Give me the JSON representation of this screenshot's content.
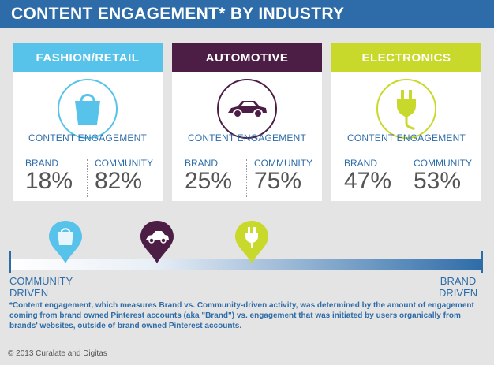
{
  "header": {
    "title": "CONTENT ENGAGEMENT* BY INDUSTRY"
  },
  "colors": {
    "fashion": "#58c3ea",
    "automotive": "#4c1d45",
    "electronics": "#c8d92b",
    "blue": "#2d6ca8"
  },
  "panels": [
    {
      "title": "FASHION/RETAIL",
      "icon": "shopping-bag-icon",
      "engagement_label": "CONTENT ENGAGEMENT",
      "brand_label": "BRAND",
      "brand_value": "18%",
      "community_label": "COMMUNITY",
      "community_value": "82%"
    },
    {
      "title": "AUTOMOTIVE",
      "icon": "car-icon",
      "engagement_label": "CONTENT ENGAGEMENT",
      "brand_label": "BRAND",
      "brand_value": "25%",
      "community_label": "COMMUNITY",
      "community_value": "75%"
    },
    {
      "title": "ELECTRONICS",
      "icon": "plug-icon",
      "engagement_label": "CONTENT ENGAGEMENT",
      "brand_label": "BRAND",
      "brand_value": "47%",
      "community_label": "COMMUNITY",
      "community_value": "53%"
    }
  ],
  "scale": {
    "left_label_1": "COMMUNITY",
    "left_label_2": "DRIVEN",
    "right_label_1": "BRAND",
    "right_label_2": "DRIVEN"
  },
  "footnote": "*Content engagement, which measures Brand vs. Community-driven activity, was determined by the amount of engagement coming from brand owned Pinterest accounts (aka \"Brand\") vs. engagement that was initiated by users organically from brands' websites, outside of brand owned Pinterest accounts.",
  "copyright": "© 2013 Curalate and Digitas"
}
